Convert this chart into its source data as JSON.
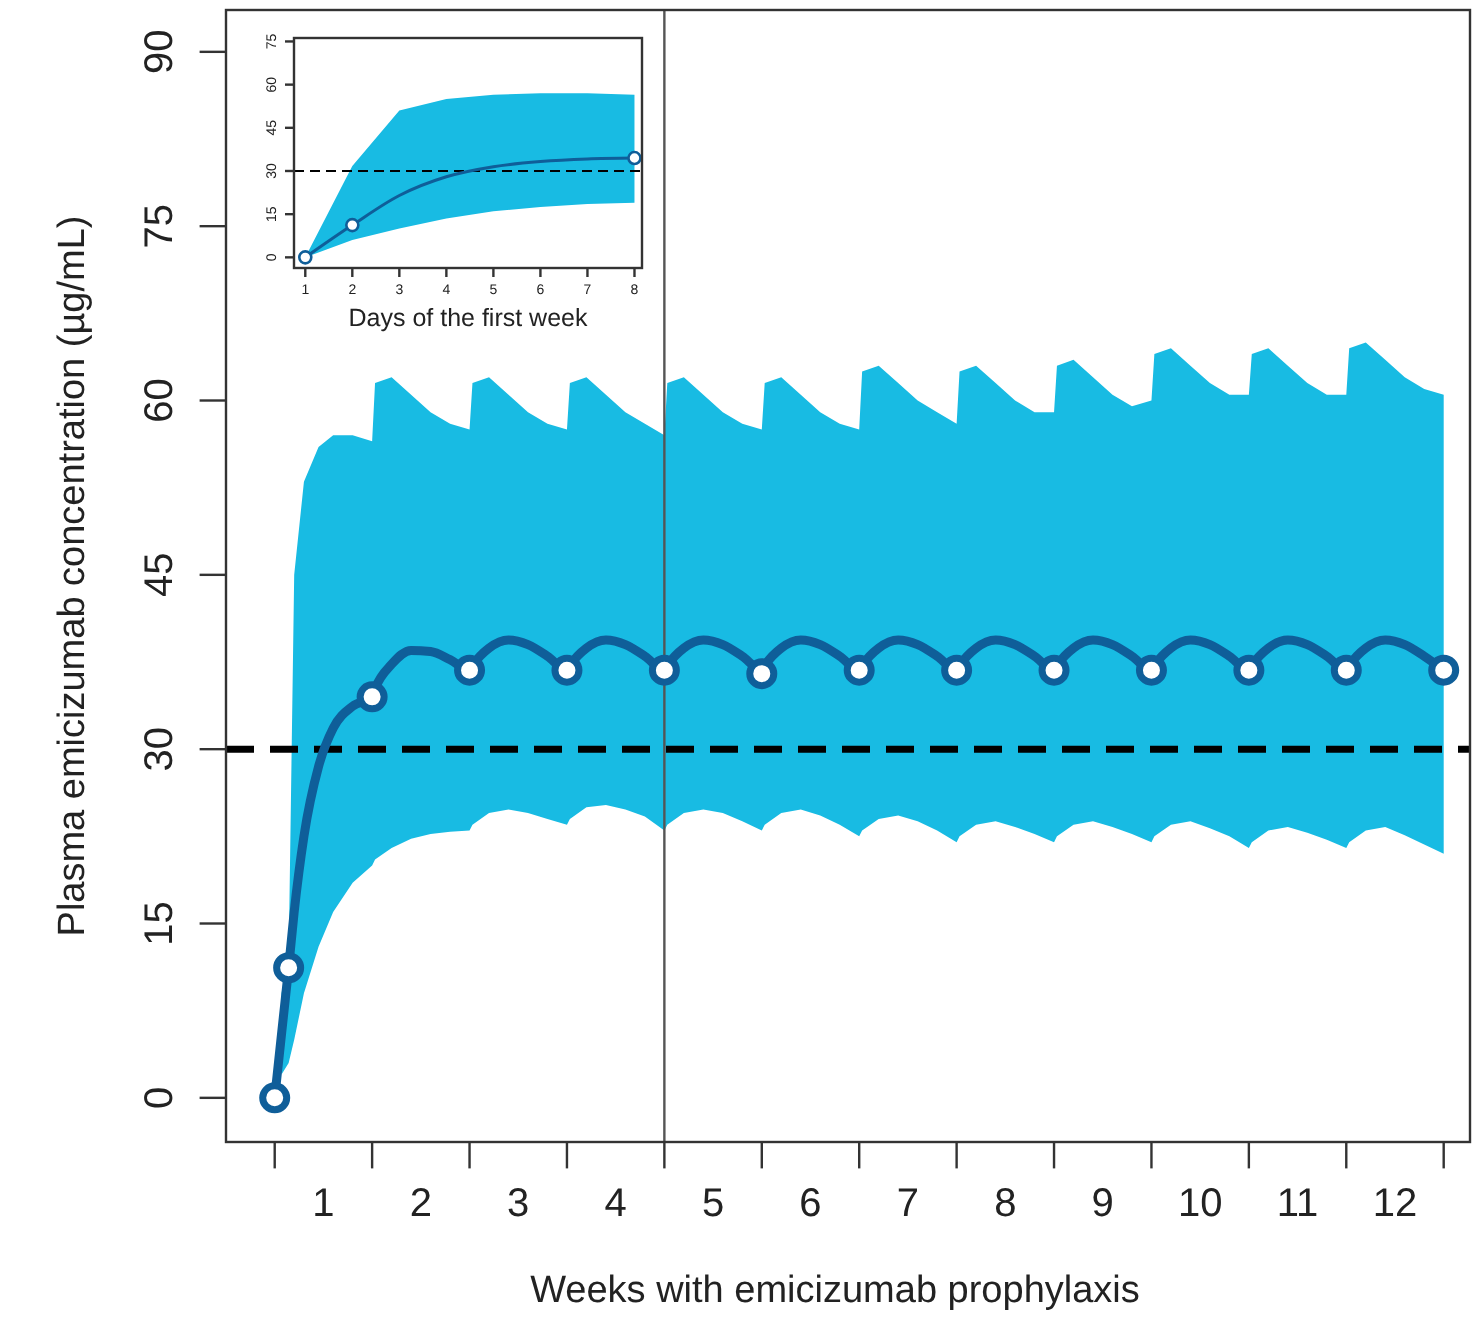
{
  "chart_data": [
    {
      "type": "line",
      "ylabel": "Plasma emicizumab concentration (µg/mL)",
      "xlabel": "Weeks with emicizumab prophylaxis",
      "xlim": [
        -0.5,
        12.27
      ],
      "ylim": [
        -3.8,
        93.6
      ],
      "yticks": [
        0,
        15,
        30,
        45,
        60,
        75,
        90
      ],
      "xticks": [
        {
          "value": 0,
          "label": null
        },
        {
          "value": 1,
          "label": null
        },
        {
          "value": 2,
          "label": null
        },
        {
          "value": 3,
          "label": null
        },
        {
          "value": 4,
          "label": null
        },
        {
          "value": 5,
          "label": null
        },
        {
          "value": 6,
          "label": null
        },
        {
          "value": 7,
          "label": null
        },
        {
          "value": 8,
          "label": null
        },
        {
          "value": 9,
          "label": null
        },
        {
          "value": 10,
          "label": null
        },
        {
          "value": 11,
          "label": null
        },
        {
          "value": 12,
          "label": null
        },
        {
          "value": 0.5,
          "label": "1"
        },
        {
          "value": 1.5,
          "label": "2"
        },
        {
          "value": 2.5,
          "label": "3"
        },
        {
          "value": 3.5,
          "label": "4"
        },
        {
          "value": 4.5,
          "label": "5"
        },
        {
          "value": 5.5,
          "label": "6"
        },
        {
          "value": 6.5,
          "label": "7"
        },
        {
          "value": 7.5,
          "label": "8"
        },
        {
          "value": 8.5,
          "label": "9"
        },
        {
          "value": 9.5,
          "label": "10"
        },
        {
          "value": 10.5,
          "label": "11"
        },
        {
          "value": 11.5,
          "label": "12"
        }
      ],
      "grid": false,
      "line_style": "solid",
      "ref_lines": [
        {
          "axis": "y",
          "value": 30,
          "color": "#000000",
          "line_style": "dashed"
        },
        {
          "axis": "x",
          "value": 4,
          "color": "#555555",
          "line_style": "solid"
        }
      ],
      "series": [
        {
          "color": "#0f5e99",
          "x": [
            0,
            0.07,
            0.143,
            0.2,
            0.3,
            0.45,
            0.6,
            0.8,
            1,
            1.03,
            1.2,
            1.4,
            1.6,
            1.8,
            2,
            2.03,
            2.2,
            2.4,
            2.6,
            2.8,
            3,
            3.03,
            3.2,
            3.4,
            3.6,
            3.8,
            4,
            4.03,
            4.2,
            4.4,
            4.6,
            4.8,
            5,
            5.03,
            5.2,
            5.4,
            5.6,
            5.8,
            6,
            6.03,
            6.2,
            6.4,
            6.6,
            6.8,
            7,
            7.03,
            7.2,
            7.4,
            7.6,
            7.8,
            8,
            8.03,
            8.2,
            8.4,
            8.6,
            8.8,
            9,
            9.03,
            9.2,
            9.4,
            9.6,
            9.8,
            10,
            10.03,
            10.2,
            10.4,
            10.6,
            10.8,
            11,
            11.03,
            11.2,
            11.4,
            11.6,
            11.8,
            12
          ],
          "values": [
            0,
            5.5,
            11.2,
            16,
            22.5,
            28.5,
            31.8,
            33.7,
            34.5,
            35.2,
            37.3,
            38.5,
            38.4,
            37.7,
            36.8,
            37.2,
            38.7,
            39.4,
            39.0,
            38.0,
            36.8,
            37.2,
            38.7,
            39.4,
            39.0,
            38.0,
            36.8,
            37.2,
            38.7,
            39.4,
            39.0,
            38.0,
            36.8,
            37.2,
            38.7,
            39.4,
            39.0,
            38.0,
            36.8,
            37.2,
            38.7,
            39.4,
            39.0,
            38.0,
            36.8,
            37.2,
            38.7,
            39.4,
            39.0,
            38.0,
            36.8,
            37.2,
            38.7,
            39.4,
            39.0,
            38.0,
            36.8,
            37.2,
            38.7,
            39.4,
            39.0,
            38.0,
            36.8,
            37.2,
            38.7,
            39.4,
            39.0,
            38.0,
            36.8,
            37.2,
            38.7,
            39.4,
            39.0,
            38.0,
            36.8
          ],
          "upper": [
            null,
            9,
            12,
            45,
            53,
            56,
            57,
            57,
            56.5,
            61.5,
            62,
            60.5,
            59,
            58,
            57.5,
            61.5,
            62,
            60.5,
            59,
            58,
            57.5,
            61.5,
            62,
            60.5,
            59,
            58,
            57,
            61.5,
            62,
            60.5,
            59,
            58,
            57.5,
            61.5,
            62,
            60.5,
            59,
            58,
            57.5,
            62.5,
            63,
            61.5,
            60,
            59,
            58,
            62.5,
            63,
            61.5,
            60,
            59,
            59,
            63,
            63.5,
            62,
            60.5,
            59.5,
            60,
            64,
            64.5,
            63,
            61.5,
            60.5,
            60.5,
            64,
            64.5,
            63,
            61.5,
            60.5,
            60.5,
            64.5,
            65,
            63.5,
            62,
            61,
            60.5
          ],
          "lower": [
            null,
            2,
            3,
            5,
            9,
            13,
            16,
            18.5,
            20,
            20.5,
            21.5,
            22.3,
            22.7,
            22.9,
            23,
            23.5,
            24.5,
            24.8,
            24.5,
            24,
            23.5,
            24,
            25,
            25.2,
            24.8,
            24.2,
            23,
            23.5,
            24.5,
            24.8,
            24.5,
            23.8,
            23,
            23.5,
            24.5,
            24.8,
            24.3,
            23.5,
            22.5,
            23,
            24,
            24.3,
            23.8,
            23,
            22,
            22.5,
            23.5,
            23.8,
            23.3,
            22.7,
            22,
            22.5,
            23.5,
            23.8,
            23.3,
            22.7,
            22,
            22.5,
            23.5,
            23.8,
            23.2,
            22.5,
            21.5,
            22,
            23,
            23.3,
            22.8,
            22.2,
            21.5,
            22,
            23,
            23.3,
            22.6,
            21.8,
            21
          ]
        },
        {
          "type": "scatter",
          "color": "#0f5e99",
          "marker": "circle",
          "x": [
            0,
            0.143,
            1,
            2,
            3,
            4,
            5,
            6,
            7,
            8,
            9,
            10,
            11,
            12
          ],
          "values": [
            0,
            11.2,
            34.5,
            36.8,
            36.8,
            36.8,
            36.5,
            36.8,
            36.8,
            36.8,
            36.8,
            36.8,
            36.8,
            36.8
          ]
        }
      ]
    },
    {
      "type": "line",
      "xlabel": "Days of the first week",
      "xlim": [
        0.76,
        8.16
      ],
      "ylim": [
        -3.7,
        76.2
      ],
      "xticks": [
        1,
        2,
        3,
        4,
        5,
        6,
        7,
        8
      ],
      "yticks": [
        0,
        15,
        30,
        45,
        60,
        75
      ],
      "grid": false,
      "line_style": "solid",
      "ref_lines": [
        {
          "axis": "y",
          "value": 30,
          "color": "#000000",
          "line_style": "dashed"
        }
      ],
      "series": [
        {
          "color": "#0f5e99",
          "x": [
            1,
            2,
            3,
            4,
            5,
            6,
            7,
            8
          ],
          "values": [
            0,
            11.2,
            21.5,
            28,
            31.5,
            33.3,
            34.2,
            34.5
          ],
          "upper": [
            0,
            31.7,
            51,
            55,
            56.5,
            57,
            57,
            56.5
          ],
          "lower": [
            0,
            6,
            10,
            13.5,
            16,
            17.5,
            18.5,
            19
          ]
        },
        {
          "type": "scatter",
          "color": "#0f5e99",
          "marker": "circle",
          "x": [
            1,
            2,
            8
          ],
          "values": [
            0,
            11.2,
            34.5
          ]
        }
      ]
    }
  ]
}
